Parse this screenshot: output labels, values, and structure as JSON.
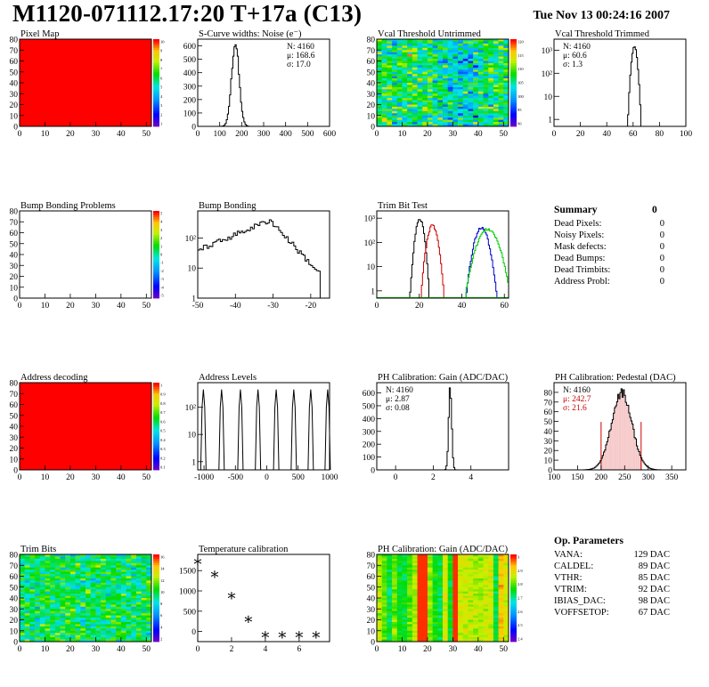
{
  "header": {
    "title": "M1120-071112.17:20 T+17a (C13)",
    "date": "Tue Nov 13 00:24:16 2007"
  },
  "colors": {
    "red": "#ff0000",
    "black": "#000000",
    "green": "#00cc00",
    "blue": "#0000cc"
  },
  "chart_data": [
    {
      "type": "heatmap",
      "title": "Pixel Map",
      "xlim": [
        0,
        52
      ],
      "ylim": [
        0,
        80
      ],
      "xticks": [
        0,
        10,
        20,
        30,
        40,
        50
      ],
      "yticks": [
        0,
        10,
        20,
        30,
        40,
        50,
        60,
        70,
        80
      ],
      "zticks": [
        "10",
        "9",
        "8",
        "7",
        "6",
        "5",
        "4",
        "3",
        "2",
        "1"
      ],
      "fill": "uniform-max"
    },
    {
      "type": "histogram",
      "title": "S-Curve widths: Noise (e⁻)",
      "xlim": [
        0,
        600
      ],
      "ylim": [
        0,
        650
      ],
      "xticks": [
        0,
        100,
        200,
        300,
        400,
        500,
        600
      ],
      "yticks": [
        0,
        100,
        200,
        300,
        400,
        500,
        600
      ],
      "stats": [
        "N: 4160",
        "μ: 168.6",
        "σ: 17.0"
      ],
      "peak": {
        "x": 168.6,
        "height": 620,
        "sigma": 17
      }
    },
    {
      "type": "heatmap",
      "title": "Vcal Threshold Untrimmed",
      "xlim": [
        0,
        52
      ],
      "ylim": [
        0,
        80
      ],
      "xticks": [
        0,
        10,
        20,
        30,
        40,
        50
      ],
      "yticks": [
        0,
        10,
        20,
        30,
        40,
        50,
        60,
        70,
        80
      ],
      "zticks": [
        "120",
        "115",
        "110",
        "105",
        "100",
        "95",
        "90"
      ],
      "fill": "random"
    },
    {
      "type": "histogram",
      "title": "Vcal Threshold Trimmed",
      "xlim": [
        0,
        100
      ],
      "log": true,
      "ylog_range": [
        0.5,
        3000
      ],
      "xticks": [
        0,
        20,
        40,
        60,
        80,
        100
      ],
      "yticks": [
        "1",
        "10",
        "10²",
        "10³"
      ],
      "stats": [
        "N: 4160",
        "μ: 60.6",
        "σ:  1.3"
      ],
      "peak": {
        "x": 60.6,
        "height": 1400,
        "sigma": 1.3
      }
    },
    {
      "type": "heatmap",
      "title": "Bump Bonding Problems",
      "xlim": [
        0,
        52
      ],
      "ylim": [
        0,
        80
      ],
      "xticks": [
        0,
        10,
        20,
        30,
        40,
        50
      ],
      "yticks": [
        0,
        10,
        20,
        30,
        40,
        50,
        60,
        70,
        80
      ],
      "zticks": [
        "5",
        "4",
        "3",
        "2",
        "1",
        "0",
        "-1",
        "-2",
        "-3",
        "-4",
        "-5"
      ],
      "fill": "empty"
    },
    {
      "type": "histogram",
      "title": "Bump Bonding",
      "xlim": [
        -50,
        -15
      ],
      "log": true,
      "ylog_range": [
        1,
        800
      ],
      "xticks": [
        -50,
        -40,
        -30,
        -20
      ],
      "yticks": [
        "1",
        "10",
        "10²"
      ],
      "shape": "bump"
    },
    {
      "type": "histogram",
      "title": "Trim Bit Test",
      "xlim": [
        0,
        62
      ],
      "log": true,
      "ylog_range": [
        0.5,
        2000
      ],
      "xticks": [
        0,
        20,
        40,
        60
      ],
      "yticks": [
        "1",
        "10",
        "10²",
        "10³"
      ],
      "series": [
        {
          "color": "#000000",
          "x": 20,
          "sigma": 1.2,
          "height": 900
        },
        {
          "color": "#cc0000",
          "x": 26,
          "sigma": 1.5,
          "height": 500
        },
        {
          "color": "#0000cc",
          "x": 49,
          "sigma": 2.0,
          "height": 400
        },
        {
          "color": "#00cc00",
          "x": 52,
          "sigma": 3.0,
          "height": 350
        }
      ]
    },
    {
      "type": "table",
      "title": "Summary",
      "value": "0",
      "rows": [
        {
          "label": "Dead Pixels:",
          "value": "0"
        },
        {
          "label": "Noisy Pixels:",
          "value": "0"
        },
        {
          "label": "Mask defects:",
          "value": "0"
        },
        {
          "label": "Dead Bumps:",
          "value": "0"
        },
        {
          "label": "Dead Trimbits:",
          "value": "0"
        },
        {
          "label": "Address Probl:",
          "value": "0"
        }
      ]
    },
    {
      "type": "heatmap",
      "title": "Address decoding",
      "xlim": [
        0,
        52
      ],
      "ylim": [
        0,
        80
      ],
      "xticks": [
        0,
        10,
        20,
        30,
        40,
        50
      ],
      "yticks": [
        0,
        10,
        20,
        30,
        40,
        50,
        60,
        70,
        80
      ],
      "zticks": [
        "1",
        "0.9",
        "0.8",
        "0.7",
        "0.6",
        "0.5",
        "0.4",
        "0.3",
        "0.2",
        "0.1"
      ],
      "fill": "uniform-max"
    },
    {
      "type": "histogram",
      "title": "Address Levels",
      "xlim": [
        -1100,
        1000
      ],
      "log": true,
      "ylog_range": [
        0.5,
        800
      ],
      "xticks": [
        -1000,
        -500,
        0,
        500,
        1000
      ],
      "yticks": [
        "1",
        "10",
        "10²"
      ],
      "peaks": [
        -1010,
        -720,
        -420,
        -140,
        150,
        430,
        700,
        970
      ]
    },
    {
      "type": "histogram",
      "title": "PH Calibration: Gain (ADC/DAC)",
      "xlim": [
        -1,
        6
      ],
      "ylim": [
        0,
        680
      ],
      "xticks": [
        0,
        2,
        4
      ],
      "yticks": [
        0,
        100,
        200,
        300,
        400,
        500,
        600
      ],
      "stats": [
        "N: 4160",
        "μ: 2.87",
        "σ: 0.08"
      ],
      "peak": {
        "x": 2.87,
        "height": 640,
        "sigma": 0.08
      }
    },
    {
      "type": "histogram",
      "title": "PH Calibration: Pedestal (DAC)",
      "xlim": [
        100,
        380
      ],
      "ylim": [
        0,
        90
      ],
      "xticks": [
        100,
        150,
        200,
        250,
        300,
        350
      ],
      "yticks": [
        0,
        10,
        20,
        30,
        40,
        50,
        60,
        70,
        80
      ],
      "stats": [
        "N: 4160",
        "μ: 242.7",
        "σ: 21.6"
      ],
      "stats_colors": [
        "#000000",
        "#cc0000",
        "#cc0000"
      ],
      "peak": {
        "x": 242.7,
        "height": 80,
        "sigma": 21.6
      },
      "cut_lines": [
        200,
        285
      ]
    },
    {
      "type": "heatmap",
      "title": "Trim Bits",
      "xlim": [
        0,
        52
      ],
      "ylim": [
        0,
        80
      ],
      "xticks": [
        0,
        10,
        20,
        30,
        40,
        50
      ],
      "yticks": [
        0,
        10,
        20,
        30,
        40,
        50,
        60,
        70,
        80
      ],
      "zticks": [
        "16",
        "14",
        "12",
        "10",
        "8",
        "6",
        "4",
        "2"
      ],
      "fill": "random-mid"
    },
    {
      "type": "scatter",
      "title": "Temperature calibration",
      "xlim": [
        0,
        7.8
      ],
      "ylim": [
        -250,
        1900
      ],
      "xticks": [
        0,
        2,
        4,
        6
      ],
      "yticks": [
        0,
        500,
        1000,
        1500
      ],
      "x": [
        0,
        1,
        2,
        3,
        4,
        5,
        6,
        7
      ],
      "y": [
        1710,
        1400,
        870,
        290,
        -100,
        -100,
        -100,
        -100
      ]
    },
    {
      "type": "heatmap",
      "title": "PH Calibration: Gain (ADC/DAC)",
      "xlim": [
        0,
        52
      ],
      "ylim": [
        0,
        80
      ],
      "xticks": [
        0,
        10,
        20,
        30,
        40,
        50
      ],
      "yticks": [
        0,
        10,
        20,
        30,
        40,
        50,
        60,
        70,
        80
      ],
      "zticks": [
        "3",
        "2.9",
        "2.8",
        "2.7",
        "2.6",
        "2.5",
        "2.4"
      ],
      "fill": "columns"
    },
    {
      "type": "table",
      "title": "Op. Parameters",
      "rows": [
        {
          "label": "VANA:",
          "value": "129 DAC"
        },
        {
          "label": "CALDEL:",
          "value": "89 DAC"
        },
        {
          "label": "VTHR:",
          "value": "85 DAC"
        },
        {
          "label": "VTRIM:",
          "value": "92 DAC"
        },
        {
          "label": "IBIAS_DAC:",
          "value": "98 DAC"
        },
        {
          "label": "VOFFSETOP:",
          "value": "67 DAC"
        }
      ]
    }
  ]
}
